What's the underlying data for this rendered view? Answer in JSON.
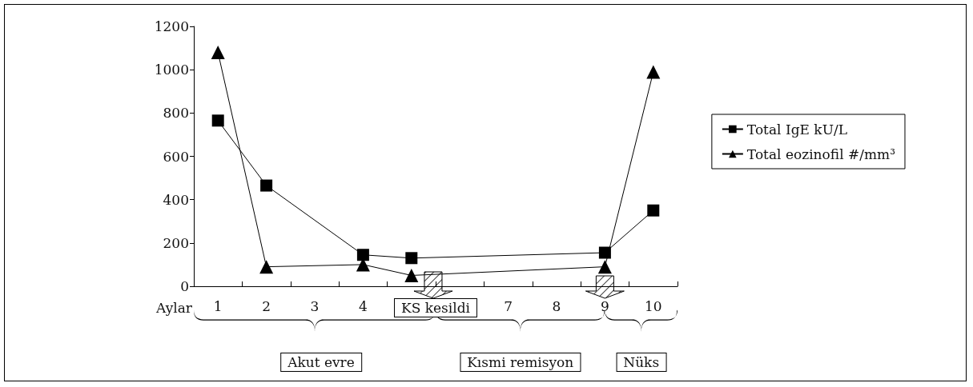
{
  "chart_data": {
    "type": "line",
    "xlabel": "Aylar",
    "categories": [
      "1",
      "2",
      "3",
      "4",
      null,
      null,
      "7",
      "8",
      "9",
      "10"
    ],
    "series": [
      {
        "name": "Total IgE kU/L",
        "color": "#000000",
        "marker": "square",
        "values": [
          765,
          465,
          null,
          145,
          130,
          null,
          null,
          null,
          155,
          350
        ]
      },
      {
        "name": "Total eozinofil #/mm³",
        "color": "#000000",
        "marker": "triangle",
        "values": [
          1080,
          90,
          null,
          100,
          50,
          null,
          null,
          null,
          90,
          990
        ]
      }
    ],
    "ylim": [
      0,
      1200
    ],
    "yticks": [
      0,
      200,
      400,
      600,
      800,
      1000,
      1200
    ],
    "grid": false,
    "legend": "right",
    "line_style": "solid",
    "annotations": [
      "KS kesildi",
      "Akut evre",
      "Kısmi remisyon",
      "Nüks"
    ]
  }
}
